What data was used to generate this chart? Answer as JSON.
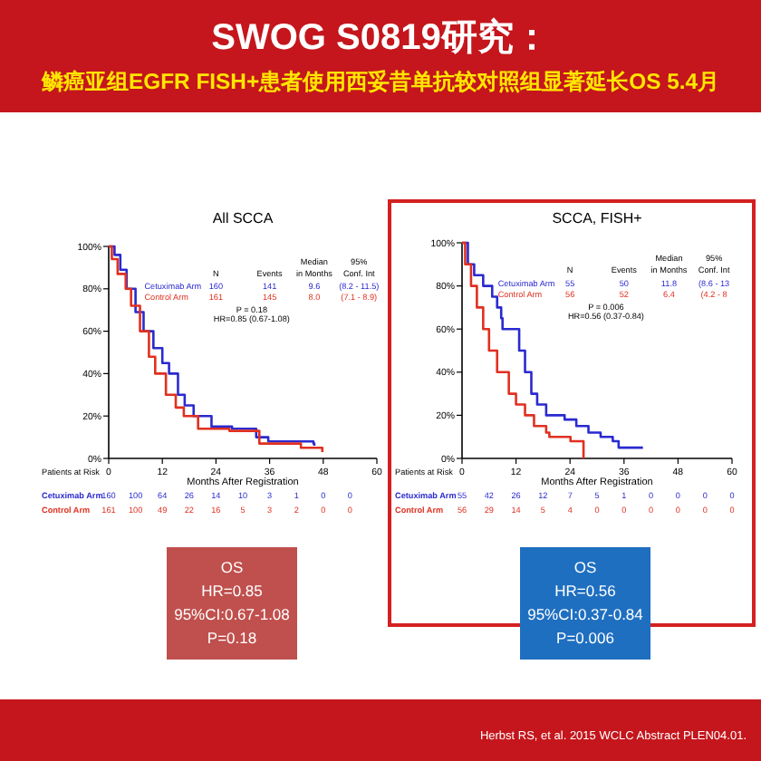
{
  "chart_data": [
    {
      "type": "other",
      "title": "SWOG S0819研究：",
      "subtitle": "鳞癌亚组EGFR FISH+患者使用西妥昔单抗较对照组显著延长OS 5.4月"
    },
    {
      "type": "step",
      "title": "All SCCA",
      "xlabel": "Months After Registration",
      "xlim": [
        0,
        60
      ],
      "ylim": [
        0,
        100
      ],
      "xticks": [
        0,
        12,
        24,
        36,
        48,
        60
      ],
      "yticks": [
        {
          "value": 0,
          "label": "0%"
        },
        {
          "value": 20,
          "label": "20%"
        },
        {
          "value": 40,
          "label": "40%"
        },
        {
          "value": 60,
          "label": "60%"
        },
        {
          "value": 80,
          "label": "80%"
        },
        {
          "value": 100,
          "label": "100%"
        }
      ],
      "legend": "top left",
      "grid": false,
      "series": [
        {
          "name": "Cetuximab Arm",
          "color": "#2a2ad0",
          "x": [
            0,
            1.3,
            2.6,
            4,
            6,
            7.8,
            10,
            12,
            13.5,
            15.5,
            17,
            19,
            23,
            27.6,
            33,
            35.7,
            45.8,
            46
          ],
          "values": [
            100,
            96,
            89,
            80,
            69,
            60,
            52,
            45,
            40,
            30,
            25,
            20,
            15,
            14,
            10,
            8,
            7,
            6
          ]
        },
        {
          "name": "Control Arm",
          "color": "#e03020",
          "x": [
            0,
            0.7,
            2,
            3.8,
            5,
            7,
            9,
            10.4,
            12.8,
            15,
            16.8,
            20,
            27,
            33.7,
            43,
            47.8
          ],
          "values": [
            100,
            94,
            87,
            80,
            72,
            60,
            48,
            40,
            30,
            24,
            20,
            14,
            13,
            7,
            5,
            3
          ]
        }
      ],
      "annotations": [
        "N",
        "Events",
        "Median",
        "in Months",
        "95%",
        "Conf. Int",
        "160",
        "141",
        "9.6",
        "(8.2 - 11.5)",
        "161",
        "145",
        "8.0",
        "(7.1 - 8.9)",
        "P = 0.18",
        "HR=0.85 (0.67-1.08)",
        "Patients at Risk",
        "160 100 64 26 14 10 3 1 0 0",
        "161 100 49 22 16 5 3 2 0 0",
        "OS",
        "HR=0.85",
        "95%CI:0.67-1.08",
        "P=0.18"
      ]
    },
    {
      "type": "step",
      "title": "SCCA, FISH+",
      "xlabel": "Months After Registration",
      "xlim": [
        0,
        60
      ],
      "ylim": [
        0,
        100
      ],
      "xticks": [
        0,
        12,
        24,
        36,
        48,
        60
      ],
      "yticks": [
        {
          "value": 0,
          "label": "0%"
        },
        {
          "value": 20,
          "label": "20%"
        },
        {
          "value": 40,
          "label": "40%"
        },
        {
          "value": 60,
          "label": "60%"
        },
        {
          "value": 80,
          "label": "80%"
        },
        {
          "value": 100,
          "label": "100%"
        }
      ],
      "legend": "top left",
      "grid": false,
      "series": [
        {
          "name": "Cetuximab Arm",
          "color": "#2a2ad0",
          "x": [
            0,
            1.3,
            2.7,
            4.7,
            6.7,
            7.8,
            8.7,
            9,
            12.7,
            14,
            15.4,
            16.7,
            18.7,
            22.8,
            25.4,
            28.1,
            30.8,
            33.5,
            34.8,
            40.2
          ],
          "values": [
            100,
            90,
            85,
            80,
            75,
            70,
            65,
            60,
            50,
            40,
            30,
            25,
            20,
            18,
            15,
            12,
            10,
            8,
            5,
            5
          ]
        },
        {
          "name": "Control Arm",
          "color": "#e03020",
          "x": [
            0,
            0.7,
            2,
            3.3,
            4.7,
            6,
            7.8,
            10.4,
            12,
            14,
            16,
            18.7,
            19.4,
            24.1,
            26.5,
            27
          ],
          "values": [
            100,
            90,
            80,
            70,
            60,
            50,
            40,
            30,
            25,
            20,
            15,
            12,
            10,
            8,
            8,
            0
          ]
        }
      ],
      "annotations": [
        "N",
        "Events",
        "Median",
        "in Months",
        "95%",
        "Conf. Int",
        "55",
        "50",
        "11.8",
        "(8.6 - 13",
        "56",
        "52",
        "6.4",
        "(4.2 - 8",
        "P = 0.006",
        "HR=0.56 (0.37-0.84)",
        "Patients at Risk",
        "55 42 26 12 7 5 1 0 0 0 0",
        "56 29 14 5 4 0 0 0 0 0 0",
        "OS",
        "HR=0.56",
        "95%CI:0.37-0.84",
        "P=0.006"
      ]
    },
    {
      "type": "other",
      "annotations": [
        "Herbst RS, et al. 2015 WCLC Abstract PLEN04.01."
      ]
    }
  ]
}
